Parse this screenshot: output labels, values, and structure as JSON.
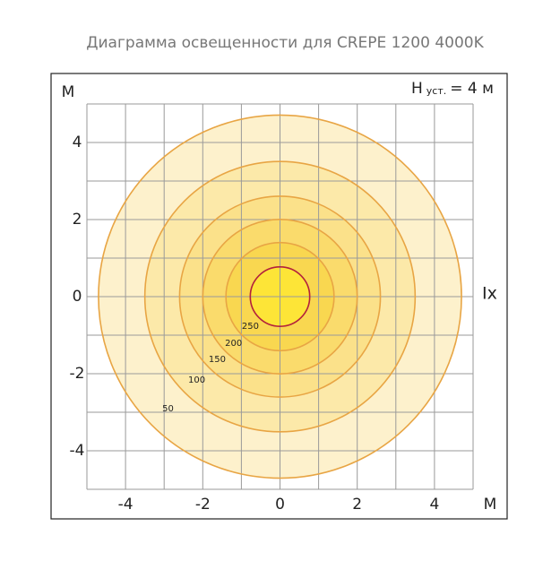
{
  "chart_data": {
    "type": "isolux",
    "title": "Диаграмма освещенности для  CREPE 1200 4000K",
    "y_axis_label": "М",
    "x_axis_label": "М",
    "direction_label": "Ix",
    "height_label": {
      "main": "H",
      "sub": "уст.",
      "rest": "= 4 м"
    },
    "xlim": [
      -5,
      5
    ],
    "ylim": [
      -5,
      5
    ],
    "xticks": [
      -4,
      -2,
      0,
      2,
      4
    ],
    "yticks": [
      -4,
      -2,
      0,
      2,
      4
    ],
    "gridlines": [
      -5,
      -4,
      -3,
      -2,
      -1,
      0,
      1,
      2,
      3,
      4,
      5
    ],
    "levels": [
      50,
      100,
      150,
      200,
      250,
      null
    ],
    "radii": [
      4.7,
      3.5,
      2.6,
      2.0,
      1.4,
      0.77
    ],
    "fills": [
      "#fdf1cc",
      "#fce9a9",
      "#fbe18a",
      "#fadb6c",
      "#f9d750",
      "#fde537"
    ],
    "strokes": [
      "#e8a544",
      "#e8a544",
      "#e8a544",
      "#e8a544",
      "#e8a544",
      "#b3213c"
    ]
  }
}
